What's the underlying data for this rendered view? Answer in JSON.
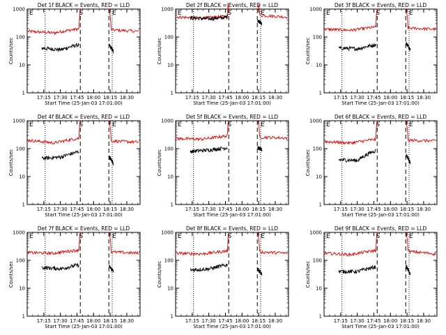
{
  "figure": {
    "x_axis_label": "Start Time (25-Jan-03 17:01:00)",
    "y_axis_label": "Counts/sec",
    "series_legend": {
      "black": "Events",
      "red": "LLD"
    },
    "colors": {
      "events": "#000000",
      "lld": "#dd0000",
      "axes": "#000000",
      "background": "#ffffff"
    }
  },
  "chart_data": [
    {
      "type": "line",
      "title": "Det 1f BLACK = Events, RED = LLD",
      "xlabel": "Start Time (25-Jan-03 17:01:00)",
      "ylabel": "Counts/sec",
      "ylog": true,
      "xlim": [
        17.0,
        18.7
      ],
      "ylim": [
        1,
        1000
      ],
      "xticks": [
        "17:15",
        "17:30",
        "17:45",
        "18:00",
        "18:15",
        "18:30"
      ],
      "yticks": [
        "1",
        "10",
        "100",
        "1000"
      ],
      "markers": [
        {
          "label": "E",
          "x": 17.0
        },
        {
          "label": "S",
          "x": 17.78
        },
        {
          "label": "E",
          "x": 18.28
        }
      ],
      "dotted_x": [
        17.27,
        18.28
      ],
      "dashed_x": [
        17.8,
        18.23
      ],
      "series": [
        {
          "name": "LLD",
          "levels": {
            "pre": 160,
            "mid": 140,
            "end": 200,
            "post": 180,
            "post_end": 160
          }
        },
        {
          "name": "Events",
          "levels": {
            "pre": 40,
            "mid": 35,
            "end": 55,
            "post": 50,
            "post_end": 30
          }
        }
      ]
    },
    {
      "type": "line",
      "title": "Det 2f BLACK = Events, RED = LLD",
      "xlabel": "Start Time (25-Jan-03 17:01:00)",
      "ylabel": "Counts/sec",
      "ylog": true,
      "xlim": [
        17.0,
        18.7
      ],
      "ylim": [
        1,
        1000
      ],
      "xticks": [
        "17:15",
        "17:30",
        "17:45",
        "18:00",
        "18:15",
        "18:30"
      ],
      "yticks": [
        "1",
        "10",
        "100",
        "1000"
      ],
      "markers": [
        {
          "label": "E",
          "x": 17.0
        },
        {
          "label": "S",
          "x": 17.78
        },
        {
          "label": "E",
          "x": 18.28
        }
      ],
      "dotted_x": [
        17.27,
        18.28
      ],
      "dashed_x": [
        17.8,
        18.23
      ],
      "series": [
        {
          "name": "LLD",
          "levels": {
            "pre": 520,
            "mid": 480,
            "end": 560,
            "post": 600,
            "post_end": 520
          }
        },
        {
          "name": "Events",
          "levels": {
            "pre": 480,
            "mid": 450,
            "end": 520,
            "post": 400,
            "post_end": 300
          }
        }
      ]
    },
    {
      "type": "line",
      "title": "Det 3f BLACK = Events, RED = LLD",
      "xlabel": "Start Time (25-Jan-03 17:01:00)",
      "ylabel": "Counts/sec",
      "ylog": true,
      "xlim": [
        17.0,
        18.7
      ],
      "ylim": [
        1,
        1000
      ],
      "xticks": [
        "17:15",
        "17:30",
        "17:45",
        "18:00",
        "18:15",
        "18:30"
      ],
      "yticks": [
        "1",
        "10",
        "100",
        "1000"
      ],
      "markers": [
        {
          "label": "E",
          "x": 17.0
        },
        {
          "label": "S",
          "x": 17.78
        },
        {
          "label": "E",
          "x": 18.28
        }
      ],
      "dotted_x": [
        17.27,
        18.28
      ],
      "dashed_x": [
        17.8,
        18.23
      ],
      "series": [
        {
          "name": "LLD",
          "levels": {
            "pre": 190,
            "mid": 175,
            "end": 230,
            "post": 210,
            "post_end": 190
          }
        },
        {
          "name": "Events",
          "levels": {
            "pre": 40,
            "mid": 38,
            "end": 55,
            "post": 60,
            "post_end": 35
          }
        }
      ]
    },
    {
      "type": "line",
      "title": "Det 4f BLACK = Events, RED = LLD",
      "xlabel": "Start Time (25-Jan-03 17:01:00)",
      "ylabel": "Counts/sec",
      "ylog": true,
      "xlim": [
        17.0,
        18.7
      ],
      "ylim": [
        1,
        1000
      ],
      "xticks": [
        "17:15",
        "17:30",
        "17:45",
        "18:00",
        "18:15",
        "18:30"
      ],
      "yticks": [
        "1",
        "10",
        "100",
        "1000"
      ],
      "markers": [
        {
          "label": "E",
          "x": 17.0
        },
        {
          "label": "S",
          "x": 17.78
        },
        {
          "label": "E",
          "x": 18.28
        }
      ],
      "dotted_x": [
        17.27,
        18.28
      ],
      "dashed_x": [
        17.8,
        18.23
      ],
      "series": [
        {
          "name": "LLD",
          "levels": {
            "pre": 200,
            "mid": 160,
            "end": 240,
            "post": 190,
            "post_end": 170
          }
        },
        {
          "name": "Events",
          "levels": {
            "pre": 45,
            "mid": 50,
            "end": 80,
            "post": 50,
            "post_end": 30
          }
        }
      ]
    },
    {
      "type": "line",
      "title": "Det 5f BLACK = Events, RED = LLD",
      "xlabel": "Start Time (25-Jan-03 17:01:00)",
      "ylabel": "Counts/sec",
      "ylog": true,
      "xlim": [
        17.0,
        18.7
      ],
      "ylim": [
        1,
        1000
      ],
      "xticks": [
        "17:15",
        "17:30",
        "17:45",
        "18:00",
        "18:15",
        "18:30"
      ],
      "yticks": [
        "1",
        "10",
        "100",
        "1000"
      ],
      "markers": [
        {
          "label": "E",
          "x": 17.0
        },
        {
          "label": "S",
          "x": 17.78
        },
        {
          "label": "E",
          "x": 18.28
        }
      ],
      "dotted_x": [
        17.27,
        18.28
      ],
      "dashed_x": [
        17.8,
        18.23
      ],
      "series": [
        {
          "name": "LLD",
          "levels": {
            "pre": 230,
            "mid": 220,
            "end": 290,
            "post": 260,
            "post_end": 240
          }
        },
        {
          "name": "Events",
          "levels": {
            "pre": 80,
            "mid": 90,
            "end": 110,
            "post": 110,
            "post_end": 90
          }
        }
      ]
    },
    {
      "type": "line",
      "title": "Det 6f BLACK = Events, RED = LLD",
      "xlabel": "Start Time (25-Jan-03 17:01:00)",
      "ylabel": "Counts/sec",
      "ylog": true,
      "xlim": [
        17.0,
        18.7
      ],
      "ylim": [
        1,
        1000
      ],
      "xticks": [
        "17:15",
        "17:30",
        "17:45",
        "18:00",
        "18:15",
        "18:30"
      ],
      "yticks": [
        "1",
        "10",
        "100",
        "1000"
      ],
      "markers": [
        {
          "label": "E",
          "x": 17.0
        },
        {
          "label": "S",
          "x": 17.78
        },
        {
          "label": "E",
          "x": 18.28
        }
      ],
      "dotted_x": [
        17.27,
        18.28
      ],
      "dashed_x": [
        17.8,
        18.23
      ],
      "series": [
        {
          "name": "LLD",
          "levels": {
            "pre": 180,
            "mid": 160,
            "end": 220,
            "post": 200,
            "post_end": 190
          }
        },
        {
          "name": "Events",
          "levels": {
            "pre": 40,
            "mid": 38,
            "end": 90,
            "post": 60,
            "post_end": 30
          }
        }
      ]
    },
    {
      "type": "line",
      "title": "Det 7f BLACK = Events, RED = LLD",
      "xlabel": "Start Time (25-Jan-03 17:01:00)",
      "ylabel": "Counts/sec",
      "ylog": true,
      "xlim": [
        17.0,
        18.7
      ],
      "ylim": [
        1,
        1000
      ],
      "xticks": [
        "17:15",
        "17:30",
        "17:45",
        "18:00",
        "18:15",
        "18:30"
      ],
      "yticks": [
        "1",
        "10",
        "100",
        "1000"
      ],
      "markers": [
        {
          "label": "E",
          "x": 17.0
        },
        {
          "label": "S",
          "x": 17.78
        },
        {
          "label": "E",
          "x": 18.28
        }
      ],
      "dotted_x": [
        17.27,
        18.28
      ],
      "dashed_x": [
        17.8,
        18.23
      ],
      "series": [
        {
          "name": "LLD",
          "levels": {
            "pre": 190,
            "mid": 180,
            "end": 240,
            "post": 200,
            "post_end": 180
          }
        },
        {
          "name": "Events",
          "levels": {
            "pre": 55,
            "mid": 50,
            "end": 70,
            "post": 60,
            "post_end": 40
          }
        }
      ]
    },
    {
      "type": "line",
      "title": "Det 8f BLACK = Events, RED = LLD",
      "xlabel": "Start Time (25-Jan-03 17:01:00)",
      "ylabel": "Counts/sec",
      "ylog": true,
      "xlim": [
        17.0,
        18.7
      ],
      "ylim": [
        1,
        1000
      ],
      "xticks": [
        "17:15",
        "17:30",
        "17:45",
        "18:00",
        "18:15",
        "18:30"
      ],
      "yticks": [
        "1",
        "10",
        "100",
        "1000"
      ],
      "markers": [
        {
          "label": "E",
          "x": 17.0
        },
        {
          "label": "S",
          "x": 17.78
        },
        {
          "label": "E",
          "x": 18.28
        }
      ],
      "dotted_x": [
        17.27,
        18.28
      ],
      "dashed_x": [
        17.8,
        18.23
      ],
      "series": [
        {
          "name": "LLD",
          "levels": {
            "pre": 180,
            "mid": 170,
            "end": 220,
            "post": 200,
            "post_end": 180
          }
        },
        {
          "name": "Events",
          "levels": {
            "pre": 45,
            "mid": 50,
            "end": 70,
            "post": 50,
            "post_end": 30
          }
        }
      ]
    },
    {
      "type": "line",
      "title": "Det 9f BLACK = Events, RED = LLD",
      "xlabel": "Start Time (25-Jan-03 17:01:00)",
      "ylabel": "Counts/sec",
      "ylog": true,
      "xlim": [
        17.0,
        18.7
      ],
      "ylim": [
        1,
        1000
      ],
      "xticks": [
        "17:15",
        "17:30",
        "17:45",
        "18:00",
        "18:15",
        "18:30"
      ],
      "yticks": [
        "1",
        "10",
        "100",
        "1000"
      ],
      "markers": [
        {
          "label": "E",
          "x": 17.0
        },
        {
          "label": "S",
          "x": 17.78
        },
        {
          "label": "E",
          "x": 18.28
        }
      ],
      "dotted_x": [
        17.27,
        18.28
      ],
      "dashed_x": [
        17.8,
        18.23
      ],
      "series": [
        {
          "name": "LLD",
          "levels": {
            "pre": 180,
            "mid": 160,
            "end": 230,
            "post": 210,
            "post_end": 170
          }
        },
        {
          "name": "Events",
          "levels": {
            "pre": 40,
            "mid": 40,
            "end": 60,
            "post": 60,
            "post_end": 30
          }
        }
      ]
    }
  ]
}
